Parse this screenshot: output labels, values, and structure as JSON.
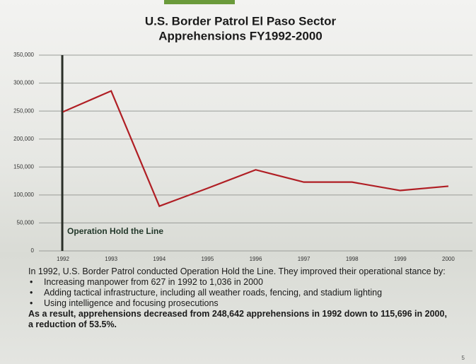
{
  "chart_data": {
    "type": "line",
    "title": "U.S. Border Patrol El Paso Sector",
    "subtitle": "Apprehensions FY1992-2000",
    "categories": [
      "1992",
      "1993",
      "1994",
      "1995",
      "1996",
      "1997",
      "1998",
      "1999",
      "2000"
    ],
    "series": [
      {
        "name": "Apprehensions",
        "color": "#b01e24",
        "values": [
          248642,
          286000,
          80000,
          112000,
          145000,
          123000,
          123000,
          108000,
          115696
        ]
      }
    ],
    "ylim": [
      0,
      350000
    ],
    "yticks": [
      0,
      {
        "value": 50000,
        "label": "50,000"
      },
      {
        "value": 100000,
        "label": "100,000"
      },
      {
        "value": 150000,
        "label": "150,000"
      },
      {
        "value": 200000,
        "label": "200,000"
      },
      {
        "value": 250000,
        "label": "250,000"
      },
      {
        "value": 300000,
        "label": "300,000"
      },
      {
        "value": 350000,
        "label": "350,000"
      }
    ],
    "grid": true,
    "annotation": {
      "text": "Operation Hold the Line",
      "category": "1992"
    }
  },
  "notes": {
    "intro": "In 1992, U.S. Border Patrol conducted Operation Hold the Line. They improved their operational stance by:",
    "bullets": [
      "Increasing manpower from 627 in 1992 to 1,036 in 2000",
      "Adding tactical infrastructure, including all weather roads, fencing, and stadium lighting",
      "Using intelligence and focusing prosecutions"
    ],
    "conclusion": "As a result, apprehensions decreased from 248,642 apprehensions in 1992 down to 115,696 in 2000, a reduction of 53.5%."
  },
  "page_number": "5"
}
